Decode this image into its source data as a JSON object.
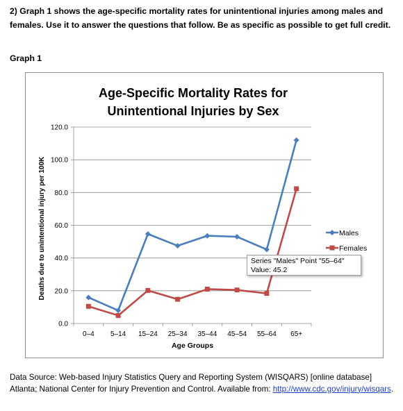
{
  "question": {
    "text": "2) Graph 1 shows the age-specific mortality rates for unintentional injuries among males and females.  Use it to answer the questions that follow. Be as specific as possible to get full credit."
  },
  "graph_label": "Graph 1",
  "chart_data": {
    "type": "line",
    "title_line1": "Age-Specific Mortality Rates for",
    "title_line2": "Unintentional Injuries by Sex",
    "xlabel": "Age Groups",
    "ylabel": "Deaths due to unintentional injury per 100K",
    "categories": [
      "0–4",
      "5–14",
      "15–24",
      "25–34",
      "35–44",
      "45–54",
      "55–64",
      "65+"
    ],
    "ylim": [
      0,
      120
    ],
    "yticks": [
      "0.0",
      "20.0",
      "40.0",
      "60.0",
      "80.0",
      "100.0",
      "120.0"
    ],
    "grid": true,
    "legend_position": "right",
    "series": [
      {
        "name": "Males",
        "color": "#4a7ebb",
        "marker": "diamond",
        "values": [
          15.9,
          8.0,
          54.7,
          47.5,
          53.6,
          53.0,
          45.2,
          112.0
        ]
      },
      {
        "name": "Females",
        "color": "#be4b48",
        "marker": "square",
        "values": [
          10.5,
          4.9,
          20.2,
          14.8,
          21.0,
          20.5,
          18.4,
          82.3
        ]
      }
    ],
    "tooltip": {
      "line1": "Series \"Males\" Point \"55–64\"",
      "line2": "Value: 45.2"
    }
  },
  "source": {
    "text": "Data Source: Web-based Injury Statistics Query and Reporting System (WISQARS) [online database] Atlanta; National Center for Injury Prevention and Control. Available from: ",
    "link_text": "http://www.cdc.gov/injury/wisqars",
    "after_link": "."
  }
}
